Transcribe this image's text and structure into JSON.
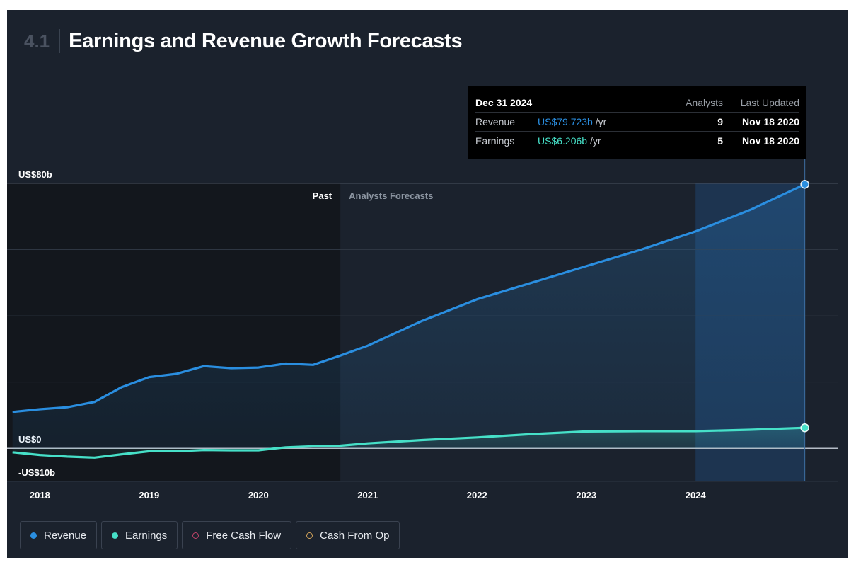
{
  "header": {
    "section_number": "4.1",
    "title": "Earnings and Revenue Growth Forecasts"
  },
  "tooltip": {
    "date": "Dec 31 2024",
    "col_analysts": "Analysts",
    "col_last_updated": "Last Updated",
    "rows": [
      {
        "label": "Revenue",
        "value": "US$79.723b",
        "unit": "/yr",
        "analysts": "9",
        "updated": "Nov 18 2020"
      },
      {
        "label": "Earnings",
        "value": "US$6.206b",
        "unit": "/yr",
        "analysts": "5",
        "updated": "Nov 18 2020"
      }
    ]
  },
  "legend": [
    {
      "label": "Revenue",
      "color": "#2a8ee0",
      "filled": true
    },
    {
      "label": "Earnings",
      "color": "#46e0c8",
      "filled": true
    },
    {
      "label": "Free Cash Flow",
      "color": "#c2456a",
      "filled": false
    },
    {
      "label": "Cash From Op",
      "color": "#d6a55a",
      "filled": false
    }
  ],
  "chart_data": {
    "type": "line",
    "ylim": [
      -10,
      80
    ],
    "y_tick_labels": [
      {
        "value": 80,
        "label": "US$80b"
      },
      {
        "value": 0,
        "label": "US$0"
      },
      {
        "value": -10,
        "label": "-US$10b"
      }
    ],
    "gridlines": [
      80,
      60,
      40,
      20,
      0,
      -10
    ],
    "x_ticks": [
      {
        "value": 2018,
        "label": "2018"
      },
      {
        "value": 2019,
        "label": "2019"
      },
      {
        "value": 2020,
        "label": "2020"
      },
      {
        "value": 2021,
        "label": "2021"
      },
      {
        "value": 2022,
        "label": "2022"
      },
      {
        "value": 2023,
        "label": "2023"
      },
      {
        "value": 2024,
        "label": "2024"
      }
    ],
    "xlim": [
      2017.7,
      2025.3
    ],
    "past_label": "Past",
    "forecast_label": "Analysts Forecasts",
    "forecast_start": 2020.75,
    "highlight_start": 2024.0,
    "highlight_end": 2025.0,
    "series": [
      {
        "name": "Revenue",
        "color": "#2a8ee0",
        "points": [
          [
            2017.75,
            11
          ],
          [
            2018.0,
            11.8
          ],
          [
            2018.25,
            12.4
          ],
          [
            2018.5,
            14.0
          ],
          [
            2018.75,
            18.5
          ],
          [
            2019.0,
            21.5
          ],
          [
            2019.25,
            22.5
          ],
          [
            2019.5,
            24.8
          ],
          [
            2019.75,
            24.2
          ],
          [
            2020.0,
            24.4
          ],
          [
            2020.25,
            25.6
          ],
          [
            2020.5,
            25.2
          ],
          [
            2020.75,
            28.0
          ],
          [
            2021.0,
            31.0
          ],
          [
            2021.5,
            38.5
          ],
          [
            2022.0,
            45.0
          ],
          [
            2022.5,
            50.0
          ],
          [
            2023.0,
            55.0
          ],
          [
            2023.5,
            60.0
          ],
          [
            2024.0,
            65.5
          ],
          [
            2024.5,
            72.0
          ],
          [
            2025.0,
            79.723
          ]
        ]
      },
      {
        "name": "Earnings",
        "color": "#46e0c8",
        "points": [
          [
            2017.75,
            -1.2
          ],
          [
            2018.0,
            -2.0
          ],
          [
            2018.25,
            -2.5
          ],
          [
            2018.5,
            -2.8
          ],
          [
            2018.75,
            -1.8
          ],
          [
            2019.0,
            -0.9
          ],
          [
            2019.25,
            -0.9
          ],
          [
            2019.5,
            -0.5
          ],
          [
            2019.75,
            -0.6
          ],
          [
            2020.0,
            -0.6
          ],
          [
            2020.25,
            0.3
          ],
          [
            2020.5,
            0.6
          ],
          [
            2020.75,
            0.8
          ],
          [
            2021.0,
            1.5
          ],
          [
            2021.5,
            2.5
          ],
          [
            2022.0,
            3.3
          ],
          [
            2022.5,
            4.3
          ],
          [
            2023.0,
            5.1
          ],
          [
            2023.5,
            5.2
          ],
          [
            2024.0,
            5.2
          ],
          [
            2024.5,
            5.6
          ],
          [
            2025.0,
            6.206
          ]
        ]
      }
    ]
  }
}
